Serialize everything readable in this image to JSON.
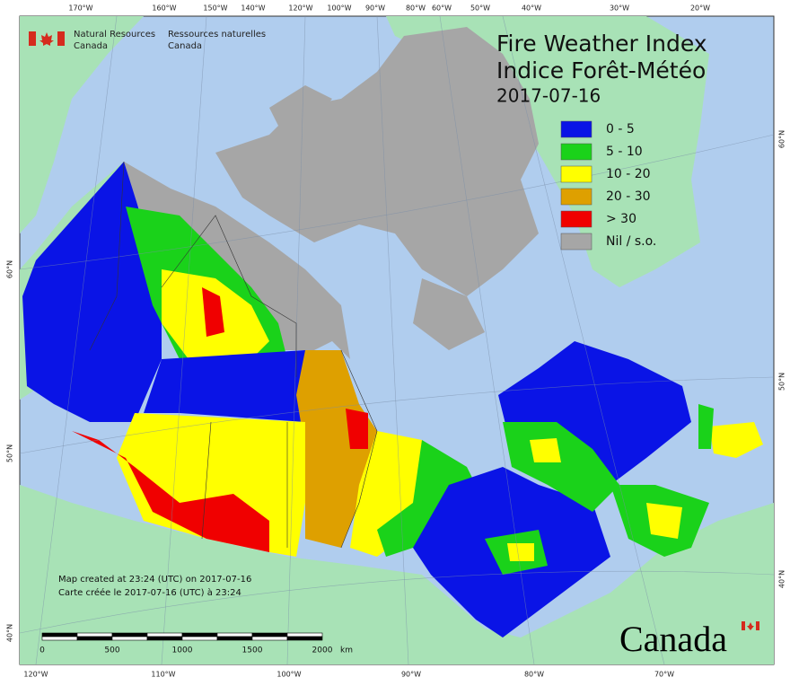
{
  "header": {
    "org_en": [
      "Natural Resources",
      "Canada"
    ],
    "org_fr": [
      "Ressources naturelles",
      "Canada"
    ],
    "title_en": "Fire Weather Index",
    "title_fr": "Indice Forêt-Météo",
    "date": "2017-07-16"
  },
  "legend": [
    {
      "label": "0 - 5",
      "color": "#0a14e6"
    },
    {
      "label": "5 - 10",
      "color": "#1ad21a"
    },
    {
      "label": "10 - 20",
      "color": "#ffff00"
    },
    {
      "label": "20 - 30",
      "color": "#dea000"
    },
    {
      "label": "> 30",
      "color": "#f00000"
    },
    {
      "label": "Nil / s.o.",
      "color": "#a6a6a6"
    }
  ],
  "coordinates": {
    "top": [
      "170°W",
      "160°W",
      "150°W",
      "140°W",
      "120°W",
      "100°W",
      "90°W",
      "80°W",
      "60°W",
      "50°W",
      "40°W",
      "30°W",
      "20°W"
    ],
    "bottom": [
      "120°W",
      "110°W",
      "100°W",
      "90°W",
      "80°W",
      "70°W"
    ],
    "left": [
      "60°N",
      "50°N",
      "40°N"
    ],
    "right": [
      "60°N",
      "50°N",
      "40°N"
    ]
  },
  "footer": {
    "credit_en": "Map created at 23:24 (UTC) on 2017-07-16",
    "credit_fr": "Carte créée le 2017-07-16 (UTC) à 23:24",
    "scale_labels": [
      "0",
      "500",
      "1000",
      "1500",
      "2000"
    ],
    "scale_unit": "km",
    "wordmark": "Canada"
  }
}
